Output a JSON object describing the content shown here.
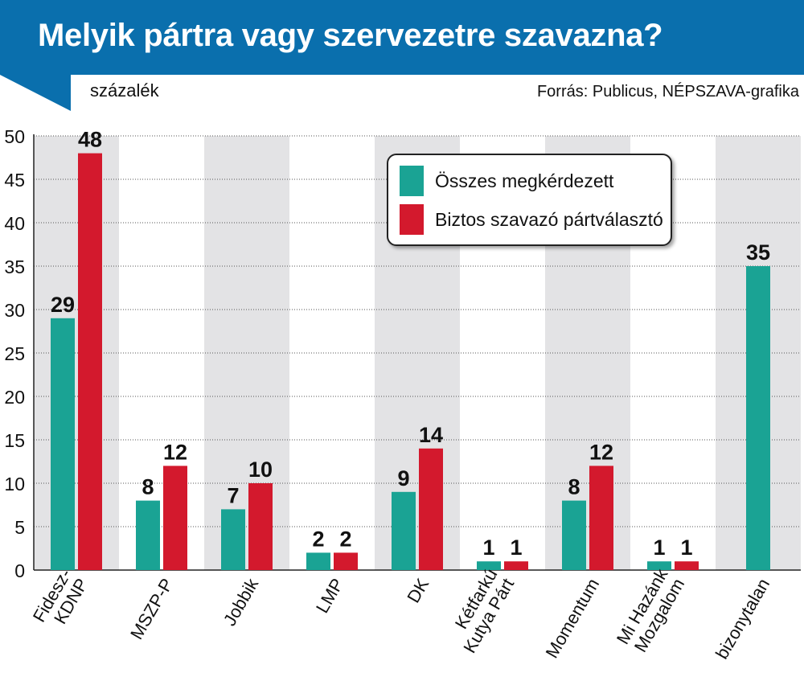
{
  "header": {
    "title": "Melyik pártra vagy szervezetre szavazna?",
    "unit": "százalék",
    "source": "Forrás: Publicus, NÉPSZAVA-grafika"
  },
  "colors": {
    "header_bg": "#0a6fad",
    "series_all": "#1aa394",
    "series_sure": "#d3192d",
    "band": "#e3e3e5"
  },
  "chart_data": {
    "type": "bar",
    "title": "Melyik pártra vagy szervezetre szavazna?",
    "ylabel": "százalék",
    "ylim": [
      0,
      50
    ],
    "yticks": [
      "0",
      "5",
      "10",
      "15",
      "20",
      "25",
      "30",
      "35",
      "40",
      "45",
      "50"
    ],
    "categories": [
      [
        "Fidesz-",
        "KDNP"
      ],
      [
        "MSZP-P"
      ],
      [
        "Jobbik"
      ],
      [
        "LMP"
      ],
      [
        "DK"
      ],
      [
        "Kétfarkú",
        "Kutya Párt"
      ],
      [
        "Momentum"
      ],
      [
        "Mi Hazánk",
        "Mozgalom"
      ],
      [
        "bizonytalan"
      ]
    ],
    "series": [
      {
        "name": "Összes megkérdezett",
        "values": [
          29,
          8,
          7,
          2,
          9,
          1,
          8,
          1,
          35
        ]
      },
      {
        "name": "Biztos szavazó pártválasztó",
        "values": [
          48,
          12,
          10,
          2,
          14,
          1,
          12,
          1,
          null
        ]
      }
    ],
    "legend": "top-right"
  }
}
